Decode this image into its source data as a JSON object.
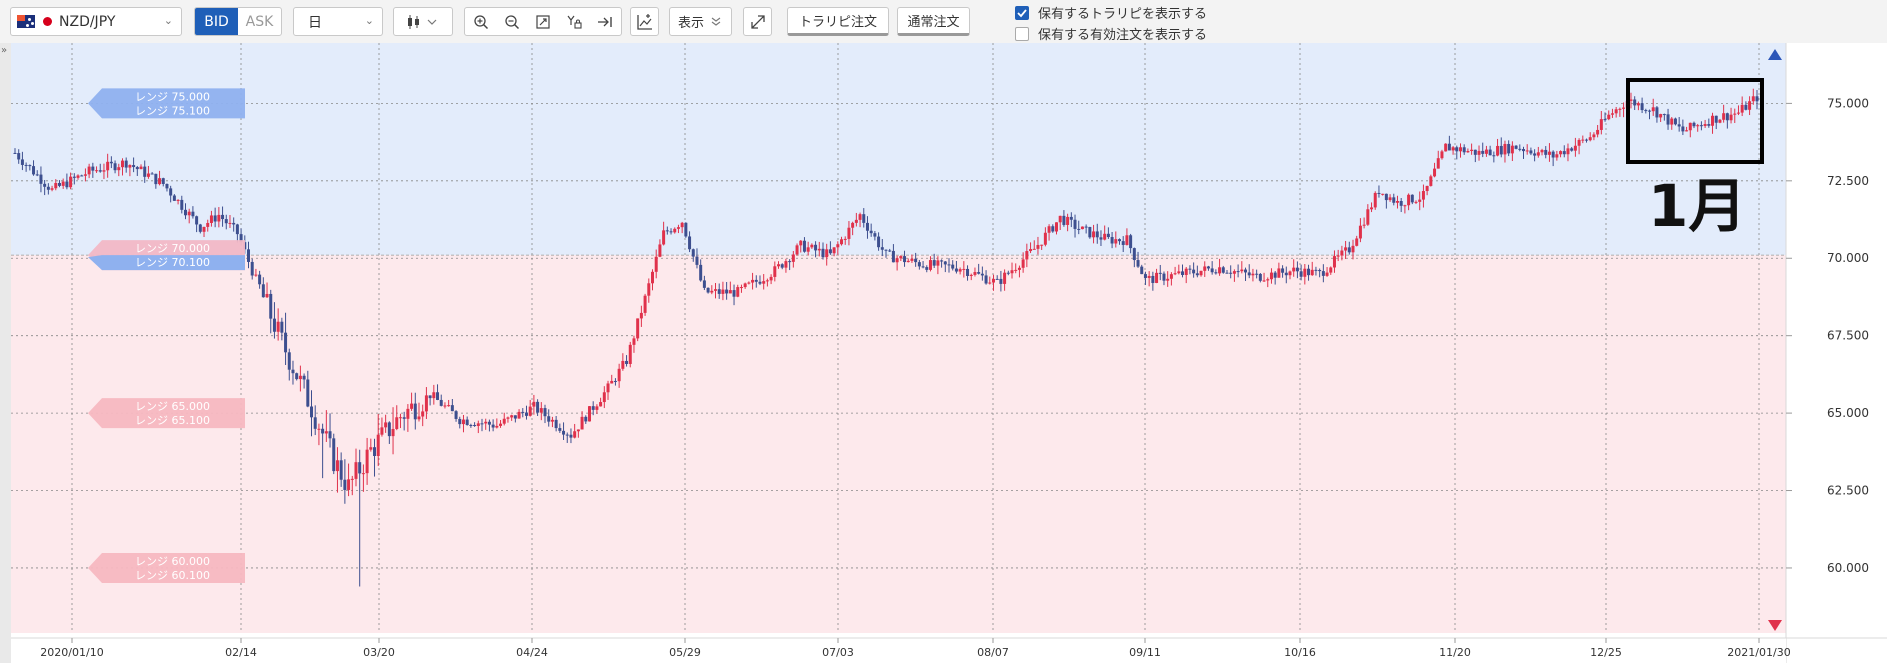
{
  "toolbar": {
    "pair": "NZD/JPY",
    "bid_label": "BID",
    "ask_label": "ASK",
    "timeframe": "日",
    "display_label": "表示",
    "trailer_order_label": "トラリピ注文",
    "normal_order_label": "通常注文",
    "checkbox_positions": "保有するトラリピを表示する",
    "checkbox_orders": "保有する有効注文を表示する"
  },
  "annotation": {
    "label": "1月"
  },
  "colors": {
    "bull": "#e0314b",
    "bear": "#3d4f8f",
    "range_blue": "#e3ecfb",
    "range_pink": "#fde9ec"
  },
  "chart_data": {
    "type": "candlestick",
    "ylim": [
      57.9,
      76.95
    ],
    "y_ticks": [
      "75.000",
      "72.500",
      "70.000",
      "67.500",
      "65.000",
      "62.500",
      "60.000"
    ],
    "x_ticks": [
      "2020/01/10",
      "02/14",
      "03/20",
      "04/24",
      "05/29",
      "07/03",
      "08/07",
      "09/11",
      "10/16",
      "11/20",
      "12/25",
      "2021/01/30"
    ],
    "range_bands": [
      {
        "from": 70.1,
        "to": 76.95,
        "color": "blue"
      },
      {
        "from": 57.9,
        "to": 70.1,
        "color": "pink"
      }
    ],
    "range_labels": [
      {
        "price": 75.0,
        "lines": [
          "レンジ 75.000",
          "レンジ 75.100"
        ],
        "color": "blue"
      },
      {
        "price": 70.1,
        "lines": [
          "レンジ 70.000",
          "レンジ 70.100"
        ],
        "color": "mixed"
      },
      {
        "price": 65.0,
        "lines": [
          "レンジ 65.000",
          "レンジ 65.100"
        ],
        "color": "pink"
      },
      {
        "price": 60.0,
        "lines": [
          "レンジ 60.000",
          "レンジ 60.100"
        ],
        "color": "pink"
      }
    ],
    "anchors": [
      [
        0,
        73.4
      ],
      [
        10,
        72.2
      ],
      [
        20,
        72.8
      ],
      [
        30,
        73.1
      ],
      [
        40,
        72.4
      ],
      [
        50,
        71.0
      ],
      [
        55,
        71.4
      ],
      [
        60,
        70.8
      ],
      [
        66,
        69.0
      ],
      [
        72,
        67.3
      ],
      [
        80,
        65.2
      ],
      [
        86,
        63.5
      ],
      [
        90,
        62.6
      ],
      [
        96,
        63.8
      ],
      [
        104,
        64.9
      ],
      [
        112,
        65.6
      ],
      [
        120,
        64.8
      ],
      [
        130,
        64.6
      ],
      [
        140,
        65.2
      ],
      [
        150,
        64.3
      ],
      [
        160,
        65.8
      ],
      [
        165,
        66.7
      ],
      [
        170,
        68.7
      ],
      [
        175,
        70.8
      ],
      [
        180,
        71.2
      ],
      [
        186,
        68.9
      ],
      [
        195,
        68.9
      ],
      [
        205,
        69.6
      ],
      [
        212,
        70.4
      ],
      [
        220,
        70.1
      ],
      [
        228,
        71.4
      ],
      [
        235,
        70.1
      ],
      [
        245,
        69.8
      ],
      [
        255,
        69.7
      ],
      [
        265,
        69.2
      ],
      [
        275,
        70.3
      ],
      [
        282,
        71.3
      ],
      [
        288,
        70.9
      ],
      [
        295,
        70.6
      ],
      [
        300,
        70.6
      ],
      [
        305,
        69.3
      ],
      [
        315,
        69.5
      ],
      [
        325,
        69.7
      ],
      [
        335,
        69.4
      ],
      [
        345,
        69.6
      ],
      [
        352,
        69.5
      ],
      [
        360,
        70.3
      ],
      [
        368,
        72.2
      ],
      [
        373,
        71.8
      ],
      [
        380,
        72.0
      ],
      [
        386,
        73.6
      ],
      [
        395,
        73.4
      ],
      [
        405,
        73.6
      ],
      [
        415,
        73.3
      ],
      [
        425,
        73.9
      ],
      [
        430,
        74.6
      ],
      [
        435,
        75.1
      ],
      [
        442,
        74.8
      ],
      [
        450,
        74.1
      ],
      [
        458,
        74.5
      ],
      [
        465,
        74.7
      ],
      [
        470,
        75.2
      ]
    ],
    "candle_count": 471,
    "date_range": [
      "2020/01/10",
      "2021/01/30"
    ]
  }
}
